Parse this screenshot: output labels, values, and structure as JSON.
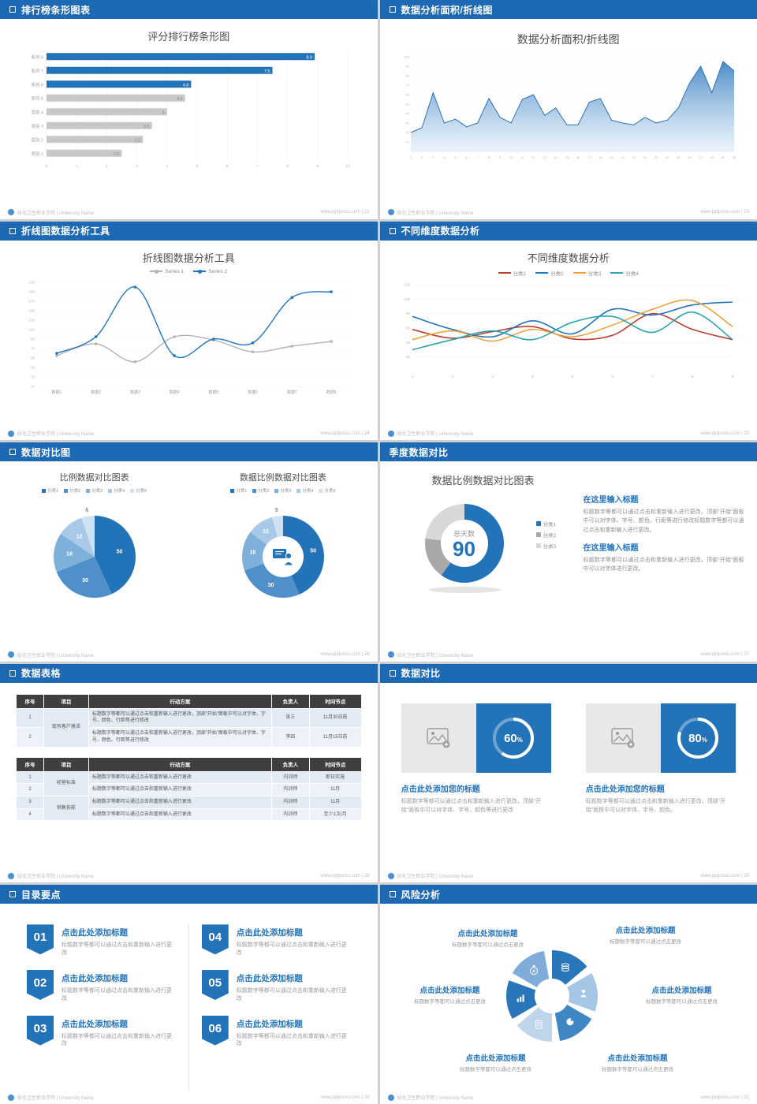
{
  "footer": {
    "brand": "绥化卫生职业学院 | University Name",
    "site": "www.pptjunsu.com"
  },
  "slides": [
    {
      "header": "排行榜条形图表",
      "page": "22",
      "title": "评分排行榜条形图",
      "chart": {
        "type": "hbar",
        "categories": [
          "系列 8",
          "系列 7",
          "系列 6",
          "系列 5",
          "类别 4",
          "类别 3",
          "类别 2",
          "类别 1"
        ],
        "values": [
          8.9,
          7.5,
          4.8,
          4.6,
          4,
          3.5,
          3.2,
          2.5
        ],
        "bar_colors": [
          "#2373b9",
          "#2373b9",
          "#2373b9",
          "#c8c8c8",
          "#c8c8c8",
          "#c8c8c8",
          "#c8c8c8",
          "#c8c8c8"
        ],
        "xlim": [
          0,
          10
        ]
      }
    },
    {
      "header": "数据分析面积/折线图",
      "page": "23",
      "title": "数据分析面积/折线图",
      "chart": {
        "type": "area",
        "x": [
          1,
          2,
          3,
          4,
          5,
          6,
          7,
          8,
          9,
          10,
          11,
          12,
          13,
          14,
          15,
          16,
          17,
          18,
          19,
          20,
          21,
          22,
          23,
          24,
          25,
          26,
          27,
          28,
          29,
          30
        ],
        "values": [
          20,
          25,
          62,
          30,
          34,
          26,
          30,
          56,
          36,
          30,
          55,
          60,
          38,
          46,
          28,
          28,
          52,
          56,
          33,
          30,
          28,
          36,
          30,
          33,
          46,
          72,
          90,
          62,
          95,
          85
        ],
        "ylim": [
          0,
          100
        ],
        "yticks": [
          10,
          20,
          30,
          40,
          50,
          60,
          70,
          80,
          90,
          100
        ],
        "line_color": "#2e6fb3",
        "fill_top": "#4286c5",
        "fill_bottom": "#dcebf7"
      }
    },
    {
      "header": "折线图数据分析工具",
      "page": "24",
      "title": "折线图数据分析工具",
      "chart": {
        "type": "line",
        "categories": [
          "数据1",
          "数据2",
          "数据3",
          "数据4",
          "数据5",
          "数据6",
          "数据7",
          "数据8"
        ],
        "ylim": [
          -10,
          210
        ],
        "ytick_step": 20,
        "series": [
          {
            "name": "Series 1",
            "color": "#b3b3b3",
            "values": [
              55,
              80,
              42,
              95,
              88,
              63,
              75,
              85
            ]
          },
          {
            "name": "Series 2",
            "color": "#2373b9",
            "values": [
              60,
              95,
              200,
              55,
              90,
              82,
              178,
              190
            ]
          }
        ]
      }
    },
    {
      "header": "不同维度数据分析",
      "page": "25",
      "title": "不同维度数据分析",
      "chart": {
        "type": "multiline",
        "x": [
          1,
          2,
          3,
          4,
          5,
          6,
          7,
          8,
          9
        ],
        "ylim": [
          0,
          120
        ],
        "yticks": [
          20,
          40,
          60,
          80,
          100,
          120
        ],
        "series": [
          {
            "name": "分类1",
            "color": "#b5402f",
            "values": [
              58,
              46,
              55,
              62,
              45,
              50,
              80,
              58,
              44
            ]
          },
          {
            "name": "分类2",
            "color": "#2373b9",
            "values": [
              76,
              58,
              48,
              70,
              52,
              86,
              78,
              92,
              96
            ]
          },
          {
            "name": "分类3",
            "color": "#efa23d",
            "values": [
              44,
              56,
              42,
              58,
              48,
              64,
              86,
              98,
              62
            ]
          },
          {
            "name": "分类4",
            "color": "#2ba3ad",
            "values": [
              30,
              44,
              56,
              44,
              68,
              76,
              54,
              82,
              44
            ]
          }
        ]
      }
    },
    {
      "header": "数据对比图",
      "page": "26",
      "charts": [
        {
          "type": "pie",
          "title": "比例数据对比图表",
          "legend": [
            "分类1",
            "分类2",
            "分类3",
            "分类4",
            "分类5"
          ],
          "values": [
            50,
            30,
            18,
            12,
            6
          ],
          "colors": [
            "#2373b9",
            "#4f8fca",
            "#7fb0da",
            "#a9c9e8",
            "#cfe2f3"
          ]
        },
        {
          "type": "donut",
          "title": "数据比例数据对比图表",
          "legend": [
            "分类1",
            "分类2",
            "分类3",
            "分类4",
            "分类5"
          ],
          "values": [
            50,
            30,
            18,
            12,
            5
          ],
          "colors": [
            "#2373b9",
            "#4f8fca",
            "#7fb0da",
            "#a9c9e8",
            "#cfe2f3"
          ],
          "center_icon": "presenter-icon"
        }
      ]
    },
    {
      "header": "季度数据对比",
      "page": "27",
      "title": "数据比例数据对比图表",
      "chart": {
        "type": "donut",
        "values": [
          60,
          17,
          23
        ],
        "colors": [
          "#2373b9",
          "#a8a8a8",
          "#d8d8d8"
        ],
        "legend": [
          "分类1",
          "分类2",
          "分类3"
        ],
        "center_label": "总天数",
        "center_value": "90"
      },
      "blocks": [
        {
          "title": "在这里输入标题",
          "body": "标题数字等都可以通过点击和重新输入进行更改，顶部“开始”面板中可以对字体、字号、颜色、行距等进行修改标题数字等都可以通过点击和重新输入进行更改。"
        },
        {
          "title": "在这里输入标题",
          "body": "标题数字等都可以通过点击和重新输入进行更改，顶部“开始”面板中可以对字体进行更改。"
        }
      ]
    },
    {
      "header": "数据表格",
      "page": "28",
      "tables": [
        {
          "headers": [
            "序号",
            "项目",
            "行动方案",
            "负责人",
            "时间节点"
          ],
          "rows": [
            [
              {
                "t": "1"
              },
              {
                "t": "现有客户激活",
                "rs": 2
              },
              {
                "t": "标题数字等都可以通过点击和重新输入进行更改，顶部“开始”面板中可以对字体、字号、颜色、行距等进行修改",
                "cls": "long"
              },
              {
                "t": "张三"
              },
              {
                "t": "11月30日前"
              }
            ],
            [
              {
                "t": "2"
              },
              {
                "t": "标题数字等都可以通过点击和重新输入进行更改，顶部“开始”面板中可以对字体、字号、颜色、行距等进行修改",
                "cls": "long"
              },
              {
                "t": "李四"
              },
              {
                "t": "11月15日前"
              }
            ]
          ]
        },
        {
          "headers": [
            "序号",
            "项目",
            "行动方案",
            "负责人",
            "时间节点"
          ],
          "rows": [
            [
              {
                "t": "1"
              },
              {
                "t": "经营标准",
                "rs": 2
              },
              {
                "t": "标题数字等都可以通过点击和重新输入进行更改",
                "cls": "long"
              },
              {
                "t": "内训师"
              },
              {
                "t": "即日实施"
              }
            ],
            [
              {
                "t": "2"
              },
              {
                "t": "标题数字等都可以通过点击和重新输入进行更改",
                "cls": "long"
              },
              {
                "t": "内训师"
              },
              {
                "t": "11月"
              }
            ],
            [
              {
                "t": "3"
              },
              {
                "t": "销售技能",
                "rs": 2
              },
              {
                "t": "标题数字等都可以通过点击和重新输入进行更改",
                "cls": "long"
              },
              {
                "t": "内训师"
              },
              {
                "t": "11月"
              }
            ],
            [
              {
                "t": "4"
              },
              {
                "t": "标题数字等都可以通过点击和重新输入进行更改",
                "cls": "long"
              },
              {
                "t": "内训师"
              },
              {
                "t": "至少1次/月"
              }
            ]
          ]
        }
      ]
    },
    {
      "header": "数据对比",
      "page": "29",
      "cards": [
        {
          "percent": 60,
          "title": "点击此处添加您的标题",
          "body": "标题数字等都可以通过点击和重新输入进行更改，顶部“开始”面板中可以对字体、字号、颜色等进行更改"
        },
        {
          "percent": 80,
          "title": "点击此处添加您的标题",
          "body": "标题数字等都可以通过点击和重新输入进行更改，顶部“开始”面板中可以对字体、字号、颜色。"
        }
      ]
    },
    {
      "header": "目录要点",
      "page": "30",
      "items": [
        {
          "num": "01",
          "title": "点击此处添加标题",
          "body": "标题数字等都可以通过点击和重新输入进行更改"
        },
        {
          "num": "02",
          "title": "点击此处添加标题",
          "body": "标题数字等都可以通过点击和重新输入进行更改"
        },
        {
          "num": "03",
          "title": "点击此处添加标题",
          "body": "标题数字等都可以通过点击和重新输入进行更改"
        },
        {
          "num": "04",
          "title": "点击此处添加标题",
          "body": "标题数字等都可以通过点击和重新输入进行更改"
        },
        {
          "num": "05",
          "title": "点击此处添加标题",
          "body": "标题数字等都可以通过点击和重新输入进行更改"
        },
        {
          "num": "06",
          "title": "点击此处添加标题",
          "body": "标题数字等都可以通过点击和重新输入进行更改"
        }
      ]
    },
    {
      "header": "风险分析",
      "page": "31",
      "labels": [
        {
          "title": "点击此处添加标题",
          "body": "标题数字等都可以通过点击更改"
        },
        {
          "title": "点击此处添加标题",
          "body": "标题数字等都可以通过点击更改"
        },
        {
          "title": "点击此处添加标题",
          "body": "标题数字等都可以通过点击更改"
        },
        {
          "title": "点击此处添加标题",
          "body": "标题数字等都可以通过点击更改"
        },
        {
          "title": "点击此处添加标题",
          "body": "标题数字等都可以通过点击更改"
        },
        {
          "title": "点击此处添加标题",
          "body": "标题数字等都可以通过点击更改"
        }
      ]
    }
  ]
}
